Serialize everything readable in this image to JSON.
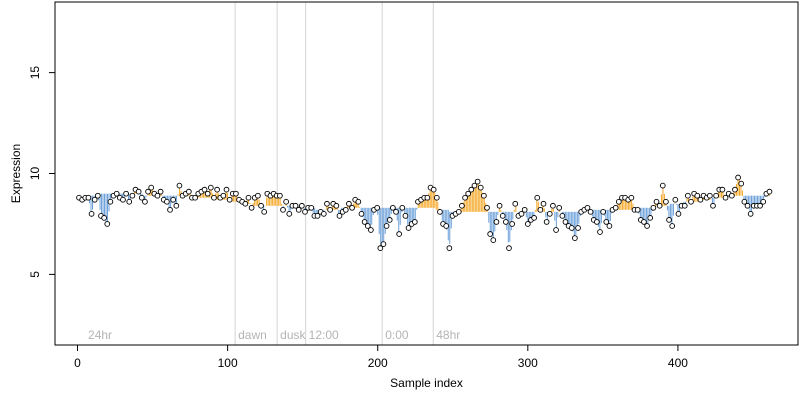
{
  "chart_data": {
    "type": "scatter",
    "title": "",
    "xlabel": "Sample index",
    "ylabel": "Expression",
    "xlim": [
      -15,
      480
    ],
    "ylim": [
      1.5,
      18.5
    ],
    "xticks": [
      0,
      100,
      200,
      300,
      400
    ],
    "yticks": [
      5,
      10,
      15
    ],
    "grid": false,
    "legend": "none",
    "baseline_series": {
      "x_start": 1,
      "x_end": 461,
      "values": [
        8.8,
        8.8,
        8.8,
        8.8,
        8.8,
        8.8,
        8.8,
        8.9,
        8.9,
        8.9,
        8.9,
        8.9,
        8.9,
        8.9,
        9.0,
        9.0,
        9.0,
        9.0,
        9.0,
        9.0,
        9.0,
        9.0,
        9.0,
        9.0,
        9.0,
        9.0,
        9.0,
        9.0,
        9.0,
        9.0,
        9.0,
        9.0,
        9.0,
        9.0,
        9.0,
        9.0,
        9.0,
        9.0,
        9.0,
        9.0,
        9.0,
        9.0,
        9.0,
        8.9,
        8.9,
        8.9,
        8.9,
        8.9,
        8.9,
        8.9,
        8.9,
        8.9,
        8.9,
        8.9,
        8.9,
        8.9,
        8.9,
        8.9,
        8.9,
        8.9,
        8.9,
        8.9,
        8.9,
        8.9,
        8.9,
        8.9,
        8.9,
        8.9,
        8.9,
        8.9,
        8.9,
        8.9,
        8.9,
        8.9,
        8.9,
        8.9,
        8.9,
        8.9,
        8.9,
        8.8,
        8.8,
        8.8,
        8.8,
        8.8,
        8.8,
        8.8,
        8.8,
        8.8,
        8.8,
        8.8,
        8.8,
        8.8,
        8.7,
        8.7,
        8.7,
        8.7,
        8.7,
        8.7,
        8.7,
        8.7,
        8.7,
        8.6,
        8.6,
        8.6,
        8.6,
        8.6,
        8.6,
        8.6,
        8.5,
        8.5,
        8.5,
        8.5,
        8.5,
        8.5,
        8.5,
        8.4,
        8.4,
        8.4,
        8.4,
        8.4,
        8.4,
        8.4,
        8.4,
        8.4,
        8.4,
        8.4,
        8.4,
        8.4,
        8.4,
        8.4,
        8.4,
        8.4,
        8.4,
        8.4,
        8.4,
        8.4,
        8.4,
        8.4,
        8.4,
        8.4,
        8.4,
        8.4,
        8.4,
        8.4,
        8.4,
        8.4,
        8.4,
        8.4,
        8.4,
        8.3,
        8.3,
        8.3,
        8.3,
        8.3,
        8.3,
        8.3,
        8.3,
        8.3,
        8.2,
        8.2,
        8.2,
        8.2,
        8.2,
        8.2,
        8.2,
        8.2,
        8.2,
        8.2,
        8.2,
        8.2,
        8.2,
        8.2,
        8.2,
        8.2,
        8.2,
        8.3,
        8.3,
        8.3,
        8.3,
        8.3,
        8.3,
        8.3,
        8.3,
        8.3,
        8.3,
        8.3,
        8.3,
        8.3,
        8.3,
        8.3,
        8.3,
        8.3,
        8.3,
        8.3,
        8.3,
        8.3,
        8.3,
        8.3,
        8.3,
        8.3,
        8.3,
        8.3,
        8.3,
        8.3,
        8.3,
        8.3,
        8.3,
        8.3,
        8.3,
        8.3,
        8.3,
        8.3,
        8.3,
        8.3,
        8.3,
        8.3,
        8.3,
        8.3,
        8.3,
        8.3,
        8.3,
        8.3,
        8.3,
        8.3,
        8.3,
        8.3,
        8.3,
        8.3,
        8.3,
        8.3,
        8.3,
        8.3,
        8.3,
        8.3,
        8.3,
        8.3,
        8.3,
        8.3,
        8.2,
        8.2,
        8.2,
        8.2,
        8.2,
        8.2,
        8.2,
        8.2,
        8.2,
        8.1,
        8.1,
        8.1,
        8.1,
        8.1,
        8.1,
        8.1,
        8.1,
        8.1,
        8.1,
        8.1,
        8.1,
        8.1,
        8.1,
        8.1,
        8.1,
        8.1,
        8.1,
        8.1,
        8.1,
        8.1,
        8.1,
        8.1,
        8.1,
        8.1,
        8.1,
        8.1,
        8.1,
        8.1,
        8.1,
        8.1,
        8.1,
        8.1,
        8.1,
        8.1,
        8.1,
        8.1,
        8.1,
        8.1,
        8.1,
        8.1,
        8.1,
        8.1,
        8.1,
        8.1,
        8.1,
        8.1,
        8.1,
        8.1,
        8.1,
        8.1,
        8.1,
        8.1,
        8.1,
        8.1,
        8.1,
        8.1,
        8.1,
        8.1,
        8.1,
        8.1,
        8.1,
        8.1,
        8.1,
        8.1,
        8.1,
        8.1,
        8.1,
        8.1,
        8.1,
        8.1,
        8.1,
        8.1,
        8.1,
        8.1,
        8.1,
        8.1,
        8.1,
        8.1,
        8.1,
        8.1,
        8.1,
        8.1,
        8.1,
        8.1,
        8.1,
        8.1,
        8.1,
        8.1,
        8.2,
        8.2,
        8.2,
        8.2,
        8.2,
        8.2,
        8.2,
        8.2,
        8.2,
        8.2,
        8.2,
        8.2,
        8.2,
        8.2,
        8.2,
        8.2,
        8.2,
        8.2,
        8.2,
        8.2,
        8.2,
        8.2,
        8.2,
        8.2,
        8.2,
        8.2,
        8.2,
        8.2,
        8.2,
        8.2,
        8.2,
        8.2,
        8.2,
        8.2,
        8.2,
        8.2,
        8.3,
        8.3,
        8.3,
        8.3,
        8.3,
        8.3,
        8.3,
        8.3,
        8.3,
        8.3,
        8.3,
        8.3,
        8.4,
        8.4,
        8.4,
        8.4,
        8.4,
        8.4,
        8.4,
        8.4,
        8.4,
        8.4,
        8.5,
        8.5,
        8.5,
        8.5,
        8.5,
        8.5,
        8.5,
        8.5,
        8.5,
        8.6,
        8.6,
        8.6,
        8.6,
        8.6,
        8.6,
        8.6,
        8.6,
        8.6,
        8.6,
        8.7,
        8.7,
        8.7,
        8.7,
        8.7,
        8.7,
        8.7,
        8.7,
        8.7,
        8.8,
        8.8,
        8.8,
        8.8,
        8.8,
        8.8,
        8.8,
        8.8,
        8.8,
        8.9,
        8.9,
        8.9,
        8.9,
        8.9,
        8.9,
        8.9,
        8.9,
        8.9,
        8.9,
        8.9,
        8.9,
        8.9,
        8.9,
        8.9,
        8.9,
        8.9,
        8.9,
        8.9,
        8.9,
        8.9,
        8.9,
        8.9,
        8.9,
        8.9,
        8.9,
        8.9,
        8.9,
        8.9,
        8.9
      ]
    },
    "points": {
      "x_start": 1,
      "x_end": 461,
      "values": [
        8.8,
        8.7,
        8.8,
        8.8,
        8.0,
        8.7,
        8.9,
        7.9,
        7.8,
        7.5,
        8.6,
        8.9,
        9.0,
        8.8,
        8.7,
        9.0,
        8.6,
        8.9,
        9.2,
        9.1,
        8.8,
        8.6,
        9.1,
        9.3,
        9.0,
        8.9,
        9.1,
        8.7,
        8.6,
        8.2,
        8.7,
        8.4,
        9.4,
        8.9,
        9.0,
        9.1,
        8.8,
        8.8,
        9.0,
        9.1,
        9.2,
        9.0,
        9.3,
        8.8,
        9.2,
        8.8,
        8.9,
        9.2,
        8.7,
        9.0,
        9.0,
        8.7,
        8.6,
        8.5,
        8.8,
        8.3,
        8.8,
        8.9,
        8.4,
        8.1,
        9.0,
        8.9,
        9.0,
        8.9,
        8.9,
        8.2,
        8.6,
        8.0,
        8.4,
        8.4,
        8.2,
        8.4,
        8.1,
        8.3,
        8.3,
        7.9,
        7.9,
        8.1,
        8.0,
        8.5,
        8.2,
        8.5,
        8.4,
        7.9,
        8.1,
        8.2,
        8.5,
        8.3,
        8.7,
        8.6,
        8.0,
        7.6,
        7.4,
        7.2,
        8.2,
        8.3,
        6.3,
        6.5,
        7.4,
        7.7,
        8.3,
        8.1,
        7.0,
        8.3,
        7.9,
        7.3,
        7.5,
        7.6,
        8.6,
        8.7,
        8.8,
        8.8,
        9.3,
        9.2,
        8.8,
        8.1,
        7.5,
        7.4,
        6.3,
        7.9,
        8.0,
        8.1,
        8.4,
        8.8,
        9.0,
        9.2,
        9.4,
        9.6,
        9.3,
        8.9,
        8.3,
        7.0,
        6.7,
        7.6,
        8.4,
        7.9,
        7.6,
        6.3,
        7.5,
        8.5,
        7.9,
        8.0,
        8.2,
        7.5,
        7.7,
        7.8,
        8.8,
        8.2,
        8.5,
        7.6,
        8.0,
        8.4,
        7.2,
        8.3,
        7.9,
        7.6,
        7.4,
        7.3,
        6.8,
        7.3,
        8.1,
        8.2,
        8.3,
        8.1,
        7.7,
        7.6,
        7.1,
        8.1,
        7.6,
        7.4,
        8.2,
        8.3,
        8.6,
        8.8,
        8.8,
        8.7,
        8.8,
        8.2,
        8.2,
        7.7,
        7.6,
        7.4,
        7.8,
        8.3,
        8.6,
        8.4,
        9.4,
        8.6,
        7.7,
        7.4,
        8.7,
        8.0,
        8.4,
        8.4,
        8.9,
        8.6,
        9.0,
        8.9,
        8.7,
        8.9,
        8.8,
        8.9,
        8.4,
        8.9,
        9.2,
        9.2,
        8.8,
        9.0,
        8.9,
        9.2,
        9.8,
        9.5,
        8.6,
        8.4,
        8.0,
        8.4,
        8.4,
        8.4,
        8.6,
        9.0,
        9.1
      ],
      "stride": 2
    },
    "vertical_lines": [
      {
        "x": 5,
        "label": "24hr"
      },
      {
        "x": 105,
        "label": "dawn"
      },
      {
        "x": 133,
        "label": "dusk"
      },
      {
        "x": 152,
        "label": "12:00"
      },
      {
        "x": 203,
        "label": "0:00"
      },
      {
        "x": 237,
        "label": "48hr"
      }
    ],
    "colors": {
      "above": "#f5a623",
      "below": "#6a9fd8",
      "point_fill": "#ffffff",
      "point_stroke": "#000000",
      "vline": "#d3d3d3",
      "vline_label": "#b4b4b4"
    }
  }
}
